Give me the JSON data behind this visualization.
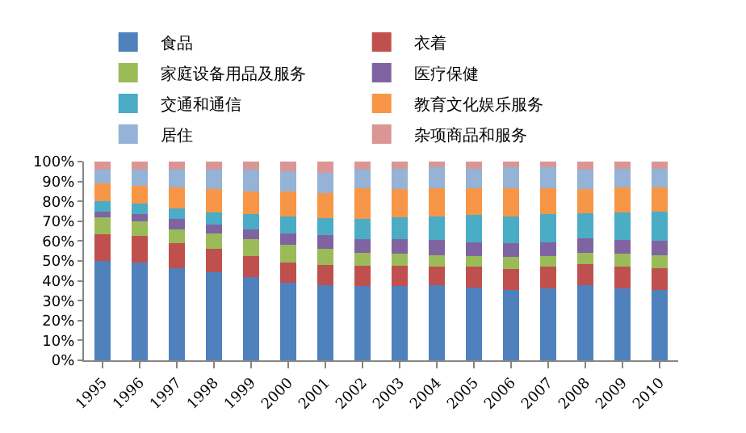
{
  "chart_data": {
    "type": "bar",
    "stacked": true,
    "legend": "top",
    "categories": [
      "1995",
      "1996",
      "1997",
      "1998",
      "1999",
      "2000",
      "2001",
      "2002",
      "2003",
      "2004",
      "2005",
      "2006",
      "2007",
      "2008",
      "2009",
      "2010"
    ],
    "series": [
      {
        "name": "食品",
        "color": "#4f81bd",
        "values": [
          50,
          49,
          46.5,
          44.5,
          42,
          39,
          38,
          37.5,
          37.5,
          38,
          36.5,
          35.5,
          36,
          38,
          36,
          35.5
        ]
      },
      {
        "name": "衣着",
        "color": "#c0504d",
        "values": [
          13.5,
          13.5,
          12.5,
          11.5,
          10.5,
          10,
          10,
          10,
          10,
          9,
          10.5,
          10.5,
          11,
          10.5,
          11,
          11
        ]
      },
      {
        "name": "家庭设备用品及服务",
        "color": "#9bbb59",
        "values": [
          8.5,
          7.5,
          7,
          8,
          8.5,
          9,
          8,
          6.5,
          6,
          6,
          5.5,
          6,
          5.5,
          5.5,
          6.5,
          6.5
        ]
      },
      {
        "name": "医疗保健",
        "color": "#8064a2",
        "values": [
          3,
          3.5,
          5,
          4.5,
          5,
          6,
          7,
          7,
          7.5,
          7.5,
          7,
          7,
          7,
          7.5,
          7,
          7
        ]
      },
      {
        "name": "交通和通信",
        "color": "#4bacc6",
        "values": [
          5,
          5.5,
          5.5,
          6,
          7.5,
          8.5,
          8.5,
          10,
          11,
          12,
          13.5,
          13.5,
          14,
          12.5,
          14,
          15
        ]
      },
      {
        "name": "教育文化娱乐服务",
        "color": "#f79646",
        "values": [
          9,
          9,
          10.5,
          11.5,
          11.5,
          12.5,
          12.5,
          15.5,
          14,
          14,
          13.5,
          14,
          13,
          12,
          12.5,
          12
        ]
      },
      {
        "name": "居住",
        "color": "#95b3d7",
        "values": [
          7,
          8,
          9,
          10,
          11,
          10,
          10.5,
          9.5,
          10.5,
          10.5,
          10,
          10.5,
          10.5,
          10,
          9.5,
          9.5
        ]
      },
      {
        "name": "杂项商品和服务",
        "color": "#d99694",
        "values": [
          4,
          4,
          4,
          4,
          4,
          5,
          5.5,
          4,
          3.5,
          3,
          3.5,
          3,
          3,
          4,
          3.5,
          3.5
        ]
      }
    ],
    "ylim": [
      0,
      100
    ],
    "yticks": [
      {
        "value": 0,
        "label": "0%"
      },
      {
        "value": 10,
        "label": "10%"
      },
      {
        "value": 20,
        "label": "20%"
      },
      {
        "value": 30,
        "label": "30%"
      },
      {
        "value": 40,
        "label": "40%"
      },
      {
        "value": 50,
        "label": "50%"
      },
      {
        "value": 60,
        "label": "60%"
      },
      {
        "value": 70,
        "label": "70%"
      },
      {
        "value": 80,
        "label": "80%"
      },
      {
        "value": 90,
        "label": "90%"
      },
      {
        "value": 100,
        "label": "100%"
      }
    ]
  }
}
